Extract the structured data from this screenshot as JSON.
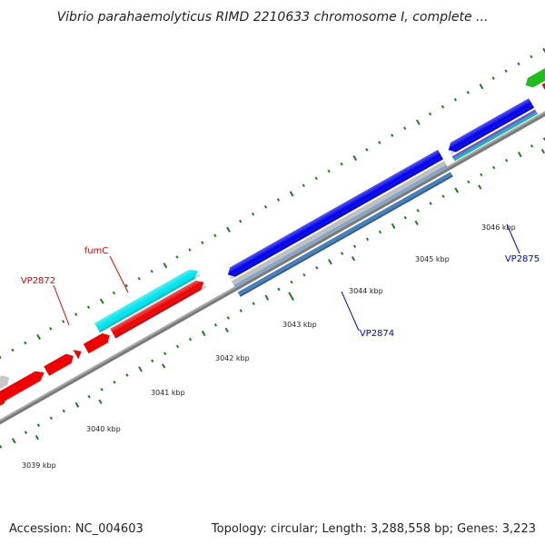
{
  "header": {
    "title": "Vibrio parahaemolyticus RIMD 2210633 chromosome I, complete ..."
  },
  "footer": {
    "accession": "Accession: NC_004603",
    "summary": "Topology: circular; Length: 3,288,558 bp; Genes: 3,223"
  },
  "map": {
    "tick_labels": [
      "3039 kbp",
      "3040 kbp",
      "3041 kbp",
      "3042 kbp",
      "3043 kbp",
      "3044 kbp",
      "3045 kbp",
      "3046 kbp"
    ],
    "genes": [
      {
        "name": "fumC",
        "color": "#dd0000"
      },
      {
        "name": "VP2872",
        "color": "#dd0000"
      },
      {
        "name": "VP2874",
        "color": "#0000cc"
      },
      {
        "name": "VP2875",
        "color": "#0000cc"
      }
    ],
    "colors": {
      "backbone": "#808080",
      "tick": "#1f7a1f",
      "feature_red": "#ee0000",
      "feature_cyan": "#00e5ee",
      "feature_blue": "#0000ee",
      "feature_gray": "#c0c0c0",
      "feature_steelblue": "#4a7fb8",
      "feature_green": "#22bb22",
      "feature_teal": "#20b2aa"
    }
  }
}
